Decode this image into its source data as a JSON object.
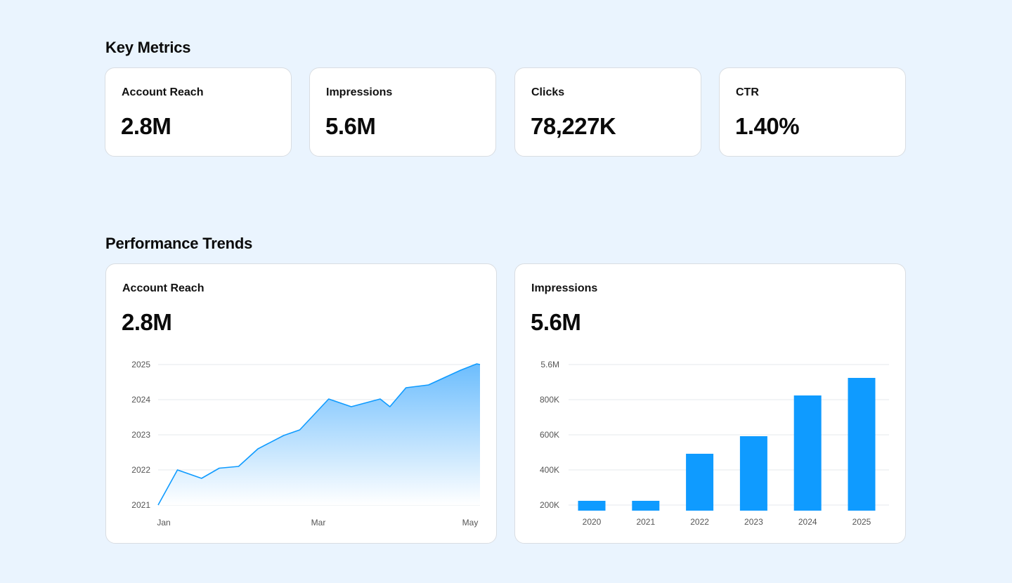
{
  "key_metrics": {
    "title": "Key Metrics",
    "cards": [
      {
        "label": "Account Reach",
        "value": "2.8M"
      },
      {
        "label": "Impressions",
        "value": "5.6M"
      },
      {
        "label": "Clicks",
        "value": "78,227K"
      },
      {
        "label": "CTR",
        "value": "1.40%"
      }
    ]
  },
  "performance": {
    "title": "Performance Trends",
    "reach_card": {
      "label": "Account Reach",
      "value": "2.8M"
    },
    "impressions_card": {
      "label": "Impressions",
      "value": "5.6M"
    }
  },
  "colors": {
    "accent": "#0f9bff",
    "area_top": "#6cbdfd",
    "background": "#eaf4fe"
  },
  "chart_data": [
    {
      "type": "area",
      "title": "Account Reach",
      "x_ticks": [
        "Jan",
        "Mar",
        "May"
      ],
      "y_ticks": [
        "2025",
        "2024",
        "2023",
        "2022",
        "2021"
      ],
      "ylim": [
        2021,
        2025
      ],
      "xlim": [
        0,
        1
      ],
      "grid": true,
      "x": [
        0,
        0.06,
        0.135,
        0.19,
        0.25,
        0.31,
        0.39,
        0.44,
        0.53,
        0.6,
        0.69,
        0.72,
        0.77,
        0.84,
        0.94,
        0.99,
        1.0
      ],
      "y": [
        2021.0,
        2022.0,
        2021.76,
        2022.05,
        2022.1,
        2022.6,
        2022.98,
        2023.14,
        2024.02,
        2023.8,
        2024.02,
        2023.8,
        2024.34,
        2024.42,
        2024.84,
        2025.02,
        2025.0
      ]
    },
    {
      "type": "bar",
      "title": "Impressions",
      "categories": [
        "2020",
        "2021",
        "2022",
        "2023",
        "2024",
        "2025"
      ],
      "y_ticks": [
        "5.6M",
        "800K",
        "600K",
        "400K",
        "200K"
      ],
      "grid": true,
      "values": [
        0.56,
        0.56,
        3.24,
        4.24,
        6.56,
        7.56
      ],
      "ylim": [
        0,
        8
      ]
    }
  ]
}
